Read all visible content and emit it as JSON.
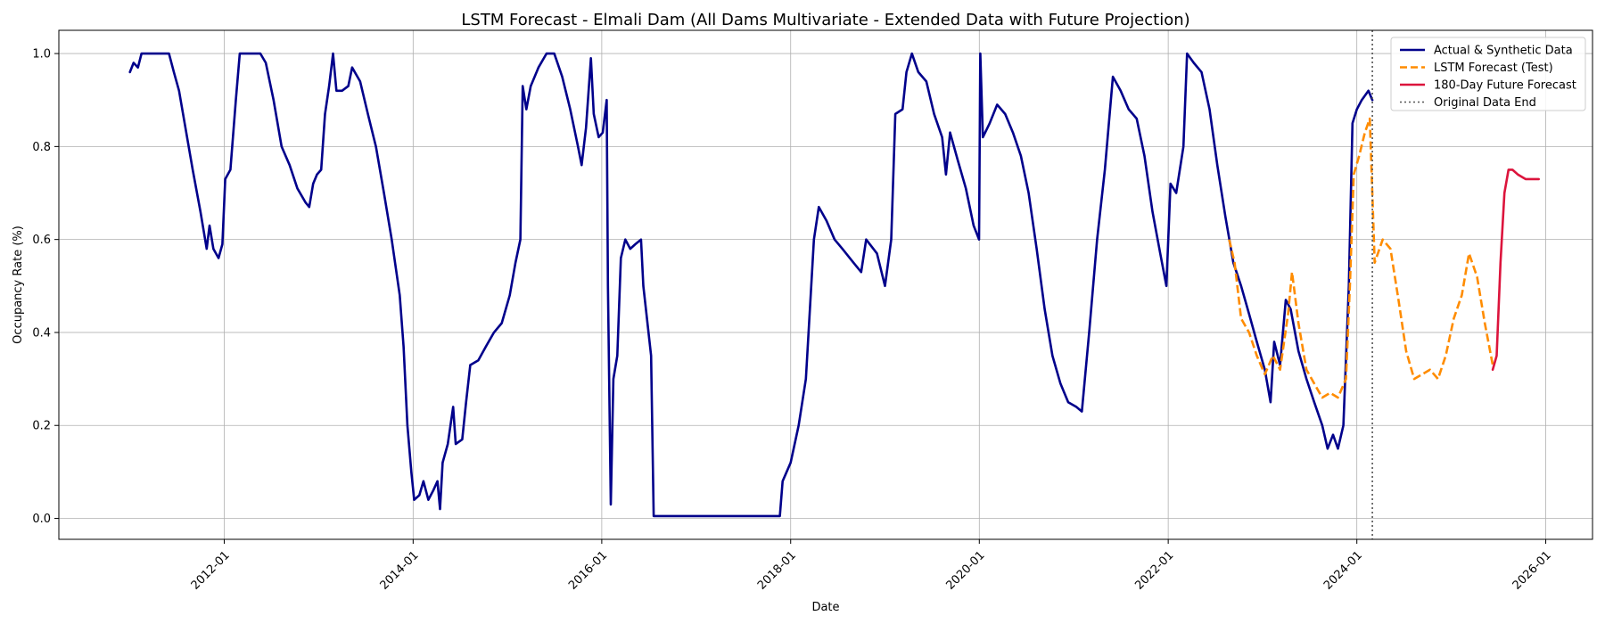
{
  "chart_data": {
    "type": "line",
    "title": "LSTM Forecast - Elmali Dam (All Dams Multivariate - Extended Data with Future Projection)",
    "xlabel": "Date",
    "ylabel": "Occupancy Rate (%)",
    "x_tick_labels": [
      "2012-01",
      "2014-01",
      "2016-01",
      "2018-01",
      "2020-01",
      "2022-01",
      "2024-01",
      "2026-01"
    ],
    "y_tick_labels": [
      "0.0",
      "0.2",
      "0.4",
      "0.6",
      "0.8",
      "1.0"
    ],
    "ylim": [
      -0.045,
      1.05
    ],
    "xlim": [
      "2010-04-01",
      "2026-07-01"
    ],
    "grid": true,
    "legend_position": "top-right",
    "vline": {
      "date": "2024-03-01",
      "name": "Original Data End"
    },
    "series": [
      {
        "name": "Actual & Synthetic Data",
        "color": "#00008b",
        "style": "solid",
        "points": [
          [
            "2011-01-01",
            0.96
          ],
          [
            "2011-01-15",
            0.98
          ],
          [
            "2011-02-01",
            0.97
          ],
          [
            "2011-02-15",
            1.0
          ],
          [
            "2011-03-15",
            1.0
          ],
          [
            "2011-05-01",
            1.0
          ],
          [
            "2011-06-01",
            1.0
          ],
          [
            "2011-06-20",
            0.96
          ],
          [
            "2011-07-10",
            0.92
          ],
          [
            "2011-08-01",
            0.85
          ],
          [
            "2011-09-01",
            0.75
          ],
          [
            "2011-10-01",
            0.66
          ],
          [
            "2011-10-25",
            0.58
          ],
          [
            "2011-11-05",
            0.63
          ],
          [
            "2011-11-20",
            0.58
          ],
          [
            "2011-12-10",
            0.56
          ],
          [
            "2011-12-25",
            0.59
          ],
          [
            "2012-01-05",
            0.73
          ],
          [
            "2012-01-25",
            0.75
          ],
          [
            "2012-02-15",
            0.9
          ],
          [
            "2012-03-01",
            1.0
          ],
          [
            "2012-04-15",
            1.0
          ],
          [
            "2012-05-20",
            1.0
          ],
          [
            "2012-06-10",
            0.98
          ],
          [
            "2012-07-10",
            0.9
          ],
          [
            "2012-08-10",
            0.8
          ],
          [
            "2012-09-10",
            0.76
          ],
          [
            "2012-10-10",
            0.71
          ],
          [
            "2012-11-10",
            0.68
          ],
          [
            "2012-11-25",
            0.67
          ],
          [
            "2012-12-10",
            0.72
          ],
          [
            "2012-12-25",
            0.74
          ],
          [
            "2013-01-10",
            0.75
          ],
          [
            "2013-01-25",
            0.87
          ],
          [
            "2013-02-10",
            0.93
          ],
          [
            "2013-02-25",
            1.0
          ],
          [
            "2013-03-10",
            0.92
          ],
          [
            "2013-04-01",
            0.92
          ],
          [
            "2013-04-25",
            0.93
          ],
          [
            "2013-05-10",
            0.97
          ],
          [
            "2013-06-10",
            0.94
          ],
          [
            "2013-07-10",
            0.87
          ],
          [
            "2013-08-10",
            0.8
          ],
          [
            "2013-09-10",
            0.7
          ],
          [
            "2013-10-10",
            0.6
          ],
          [
            "2013-11-10",
            0.48
          ],
          [
            "2013-11-25",
            0.37
          ],
          [
            "2013-12-10",
            0.2
          ],
          [
            "2013-12-25",
            0.1
          ],
          [
            "2014-01-05",
            0.04
          ],
          [
            "2014-01-25",
            0.05
          ],
          [
            "2014-02-10",
            0.08
          ],
          [
            "2014-03-01",
            0.04
          ],
          [
            "2014-03-20",
            0.06
          ],
          [
            "2014-04-05",
            0.08
          ],
          [
            "2014-04-15",
            0.02
          ],
          [
            "2014-04-25",
            0.12
          ],
          [
            "2014-05-15",
            0.16
          ],
          [
            "2014-06-05",
            0.24
          ],
          [
            "2014-06-15",
            0.16
          ],
          [
            "2014-07-10",
            0.17
          ],
          [
            "2014-07-25",
            0.25
          ],
          [
            "2014-08-10",
            0.33
          ],
          [
            "2014-09-10",
            0.34
          ],
          [
            "2014-10-10",
            0.37
          ],
          [
            "2014-11-10",
            0.4
          ],
          [
            "2014-12-10",
            0.42
          ],
          [
            "2015-01-10",
            0.48
          ],
          [
            "2015-02-01",
            0.55
          ],
          [
            "2015-02-20",
            0.6
          ],
          [
            "2015-03-01",
            0.93
          ],
          [
            "2015-03-15",
            0.88
          ],
          [
            "2015-04-01",
            0.93
          ],
          [
            "2015-05-01",
            0.97
          ],
          [
            "2015-06-01",
            1.0
          ],
          [
            "2015-07-01",
            1.0
          ],
          [
            "2015-08-01",
            0.95
          ],
          [
            "2015-09-01",
            0.88
          ],
          [
            "2015-10-01",
            0.8
          ],
          [
            "2015-10-15",
            0.76
          ],
          [
            "2015-11-01",
            0.84
          ],
          [
            "2015-11-20",
            0.99
          ],
          [
            "2015-12-01",
            0.87
          ],
          [
            "2015-12-20",
            0.82
          ],
          [
            "2016-01-05",
            0.83
          ],
          [
            "2016-01-20",
            0.9
          ],
          [
            "2016-01-25",
            0.5
          ],
          [
            "2016-02-05",
            0.03
          ],
          [
            "2016-02-15",
            0.3
          ],
          [
            "2016-03-01",
            0.35
          ],
          [
            "2016-03-15",
            0.56
          ],
          [
            "2016-04-01",
            0.6
          ],
          [
            "2016-04-20",
            0.58
          ],
          [
            "2016-05-10",
            0.59
          ],
          [
            "2016-06-01",
            0.6
          ],
          [
            "2016-06-10",
            0.5
          ],
          [
            "2016-07-10",
            0.35
          ],
          [
            "2016-07-20",
            0.005
          ],
          [
            "2017-11-20",
            0.005
          ],
          [
            "2017-12-01",
            0.08
          ],
          [
            "2018-01-01",
            0.12
          ],
          [
            "2018-02-01",
            0.2
          ],
          [
            "2018-03-01",
            0.3
          ],
          [
            "2018-04-01",
            0.6
          ],
          [
            "2018-04-20",
            0.67
          ],
          [
            "2018-05-20",
            0.64
          ],
          [
            "2018-06-20",
            0.6
          ],
          [
            "2018-07-20",
            0.58
          ],
          [
            "2018-09-01",
            0.55
          ],
          [
            "2018-10-01",
            0.53
          ],
          [
            "2018-10-20",
            0.6
          ],
          [
            "2018-12-01",
            0.57
          ],
          [
            "2019-01-01",
            0.5
          ],
          [
            "2019-01-25",
            0.6
          ],
          [
            "2019-02-10",
            0.87
          ],
          [
            "2019-03-10",
            0.88
          ],
          [
            "2019-03-25",
            0.96
          ],
          [
            "2019-04-15",
            1.0
          ],
          [
            "2019-05-10",
            0.96
          ],
          [
            "2019-06-10",
            0.94
          ],
          [
            "2019-07-10",
            0.87
          ],
          [
            "2019-08-10",
            0.82
          ],
          [
            "2019-08-25",
            0.74
          ],
          [
            "2019-09-10",
            0.83
          ],
          [
            "2019-10-10",
            0.77
          ],
          [
            "2019-11-10",
            0.71
          ],
          [
            "2019-12-10",
            0.63
          ],
          [
            "2019-12-31",
            0.6
          ],
          [
            "2020-01-05",
            1.0
          ],
          [
            "2020-01-15",
            0.82
          ],
          [
            "2020-02-10",
            0.85
          ],
          [
            "2020-03-10",
            0.89
          ],
          [
            "2020-04-10",
            0.87
          ],
          [
            "2020-05-10",
            0.83
          ],
          [
            "2020-06-10",
            0.78
          ],
          [
            "2020-07-10",
            0.7
          ],
          [
            "2020-08-10",
            0.58
          ],
          [
            "2020-09-10",
            0.45
          ],
          [
            "2020-10-10",
            0.35
          ],
          [
            "2020-11-10",
            0.29
          ],
          [
            "2020-12-10",
            0.25
          ],
          [
            "2021-01-10",
            0.24
          ],
          [
            "2021-02-01",
            0.23
          ],
          [
            "2021-03-01",
            0.4
          ],
          [
            "2021-04-01",
            0.6
          ],
          [
            "2021-05-01",
            0.75
          ],
          [
            "2021-06-01",
            0.95
          ],
          [
            "2021-07-01",
            0.92
          ],
          [
            "2021-08-01",
            0.88
          ],
          [
            "2021-09-01",
            0.86
          ],
          [
            "2021-10-01",
            0.78
          ],
          [
            "2021-11-01",
            0.66
          ],
          [
            "2021-12-01",
            0.57
          ],
          [
            "2021-12-25",
            0.5
          ],
          [
            "2022-01-10",
            0.72
          ],
          [
            "2022-02-01",
            0.7
          ],
          [
            "2022-03-01",
            0.8
          ],
          [
            "2022-03-15",
            1.0
          ],
          [
            "2022-04-10",
            0.98
          ],
          [
            "2022-05-10",
            0.96
          ],
          [
            "2022-06-10",
            0.88
          ],
          [
            "2022-07-10",
            0.76
          ],
          [
            "2022-08-10",
            0.65
          ],
          [
            "2022-09-10",
            0.55
          ],
          [
            "2022-10-10",
            0.5
          ],
          [
            "2022-11-10",
            0.44
          ],
          [
            "2022-12-10",
            0.38
          ],
          [
            "2023-01-10",
            0.32
          ],
          [
            "2023-02-01",
            0.25
          ],
          [
            "2023-02-15",
            0.38
          ],
          [
            "2023-03-10",
            0.33
          ],
          [
            "2023-04-01",
            0.47
          ],
          [
            "2023-04-20",
            0.45
          ],
          [
            "2023-05-20",
            0.36
          ],
          [
            "2023-06-20",
            0.3
          ],
          [
            "2023-07-20",
            0.25
          ],
          [
            "2023-08-20",
            0.2
          ],
          [
            "2023-09-10",
            0.15
          ],
          [
            "2023-10-01",
            0.18
          ],
          [
            "2023-10-20",
            0.15
          ],
          [
            "2023-11-10",
            0.2
          ],
          [
            "2023-12-01",
            0.5
          ],
          [
            "2023-12-15",
            0.85
          ],
          [
            "2024-01-01",
            0.88
          ],
          [
            "2024-01-20",
            0.9
          ],
          [
            "2024-02-15",
            0.92
          ],
          [
            "2024-03-01",
            0.9
          ]
        ]
      },
      {
        "name": "LSTM Forecast (Test)",
        "color": "#ff8c00",
        "style": "dashed",
        "points": [
          [
            "2022-08-25",
            0.6
          ],
          [
            "2022-09-15",
            0.55
          ],
          [
            "2022-10-10",
            0.43
          ],
          [
            "2022-11-10",
            0.4
          ],
          [
            "2022-12-10",
            0.35
          ],
          [
            "2023-01-10",
            0.31
          ],
          [
            "2023-02-10",
            0.35
          ],
          [
            "2023-03-10",
            0.32
          ],
          [
            "2023-04-10",
            0.44
          ],
          [
            "2023-04-25",
            0.53
          ],
          [
            "2023-05-20",
            0.42
          ],
          [
            "2023-06-20",
            0.32
          ],
          [
            "2023-07-20",
            0.29
          ],
          [
            "2023-08-20",
            0.26
          ],
          [
            "2023-09-20",
            0.27
          ],
          [
            "2023-10-20",
            0.26
          ],
          [
            "2023-11-20",
            0.3
          ],
          [
            "2023-12-05",
            0.5
          ],
          [
            "2023-12-20",
            0.74
          ],
          [
            "2024-01-10",
            0.78
          ],
          [
            "2024-02-01",
            0.83
          ],
          [
            "2024-02-20",
            0.86
          ],
          [
            "2024-03-10",
            0.55
          ],
          [
            "2024-04-10",
            0.6
          ],
          [
            "2024-05-10",
            0.58
          ],
          [
            "2024-06-10",
            0.47
          ],
          [
            "2024-07-10",
            0.36
          ],
          [
            "2024-08-10",
            0.3
          ],
          [
            "2024-09-10",
            0.31
          ],
          [
            "2024-10-10",
            0.32
          ],
          [
            "2024-11-10",
            0.3
          ],
          [
            "2024-12-10",
            0.35
          ],
          [
            "2025-01-10",
            0.43
          ],
          [
            "2025-02-10",
            0.48
          ],
          [
            "2025-03-10",
            0.57
          ],
          [
            "2025-04-10",
            0.52
          ],
          [
            "2025-05-10",
            0.42
          ],
          [
            "2025-06-10",
            0.33
          ]
        ]
      },
      {
        "name": "180-Day Future Forecast",
        "color": "#dc143c",
        "style": "solid",
        "points": [
          [
            "2025-06-10",
            0.32
          ],
          [
            "2025-06-25",
            0.35
          ],
          [
            "2025-07-10",
            0.55
          ],
          [
            "2025-07-25",
            0.7
          ],
          [
            "2025-08-10",
            0.75
          ],
          [
            "2025-08-25",
            0.75
          ],
          [
            "2025-09-15",
            0.74
          ],
          [
            "2025-10-15",
            0.73
          ],
          [
            "2025-11-15",
            0.73
          ],
          [
            "2025-12-05",
            0.73
          ]
        ]
      }
    ]
  }
}
